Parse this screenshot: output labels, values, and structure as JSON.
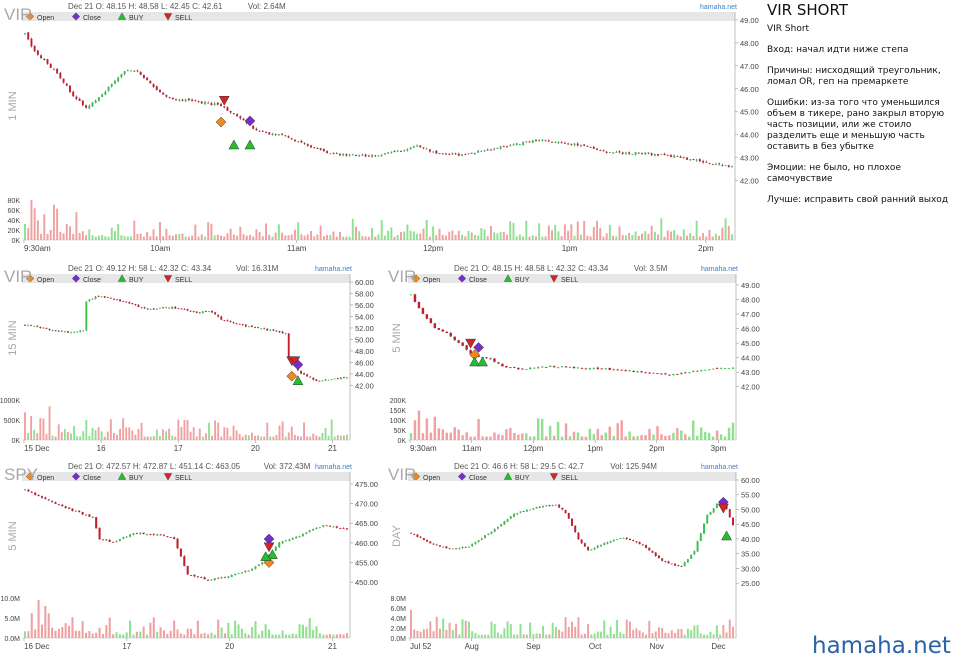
{
  "colors": {
    "up": "#39c24a",
    "down": "#c21f2c",
    "wick": "#333333",
    "vol_up": "#8fe08f",
    "vol_down": "#f0a0a0",
    "open_marker": "#f08a1c",
    "close_marker": "#7a2bd0",
    "buy_marker": "#22c02e",
    "sell_marker": "#d32525",
    "legend_bar": "#e6e6e6",
    "brand": "#2a63a8",
    "watermark": "#a8a8a8"
  },
  "legend": {
    "open": "Open",
    "close": "Close",
    "buy": "BUY",
    "sell": "SELL"
  },
  "icons": {
    "open": "orange-diamond-icon",
    "close": "purple-diamond-icon",
    "buy": "green-up-triangle-icon",
    "sell": "red-down-triangle-icon"
  },
  "notes": {
    "title": "VIR SHORT",
    "subtitle": "VIR Short",
    "entry": "Вход: начал идти ниже степа",
    "reasons": "Причины: нисходящий треугольник, ломал OR, геп на премаркете",
    "mistakes": "Ошибки: из-за того что уменьшился объем в тикере, рано закрыл вторую часть позиции, или же стоило разделить еще и меньшую часть оставить в без убытке",
    "emotions": "Эмоции: не было, но плохое самочувствие",
    "better": "Лучше: исправить свой ранний выход"
  },
  "brand": "hamaha.net",
  "chart_data": [
    {
      "id": "c1",
      "type": "candlestick",
      "symbol": "VIR",
      "interval": "1 MIN",
      "header": "Dec 21 O: 48.15 H: 48.58 L: 42.45 C: 42.61",
      "volume_text": "Vol: 2.64M",
      "source": "hamaha.net",
      "ylim": [
        41.5,
        49
      ],
      "y_ticks": [
        "49.00",
        "48.00",
        "47.00",
        "46.00",
        "45.00",
        "44.00",
        "43.00",
        "42.00"
      ],
      "vol_ticks": [
        "80K",
        "60K",
        "40K",
        "20K",
        "0K"
      ],
      "vol_max": 80,
      "x_labels": [
        "9:30am",
        "10am",
        "11am",
        "12pm",
        "1pm",
        "2pm"
      ],
      "series": [
        [
          0,
          48.4
        ],
        [
          3,
          47.6
        ],
        [
          7,
          47.1
        ],
        [
          11,
          46.5
        ],
        [
          15,
          45.7
        ],
        [
          19,
          45.2
        ],
        [
          23,
          45.6
        ],
        [
          27,
          46.2
        ],
        [
          31,
          46.8
        ],
        [
          35,
          46.8
        ],
        [
          39,
          46.2
        ],
        [
          43,
          45.7
        ],
        [
          47,
          45.5
        ],
        [
          51,
          45.5
        ],
        [
          55,
          45.4
        ],
        [
          60,
          45.3
        ],
        [
          64,
          45.0
        ],
        [
          68,
          44.6
        ],
        [
          72,
          44.2
        ],
        [
          76,
          44.0
        ],
        [
          80,
          44.0
        ],
        [
          85,
          43.7
        ],
        [
          90,
          43.4
        ],
        [
          95,
          43.2
        ],
        [
          100,
          43.1
        ],
        [
          110,
          43.1
        ],
        [
          117,
          43.3
        ],
        [
          122,
          43.5
        ],
        [
          128,
          43.2
        ],
        [
          135,
          43.1
        ],
        [
          142,
          43.3
        ],
        [
          150,
          43.5
        ],
        [
          160,
          43.8
        ],
        [
          168,
          43.6
        ],
        [
          175,
          43.5
        ],
        [
          182,
          43.2
        ],
        [
          190,
          43.2
        ],
        [
          200,
          43.1
        ],
        [
          208,
          42.9
        ],
        [
          215,
          42.7
        ],
        [
          220,
          42.6
        ]
      ],
      "nmax": 220,
      "signals": [
        {
          "type": "open",
          "i": 61,
          "p": 44.55
        },
        {
          "type": "sell",
          "i": 62,
          "p": 45.5
        },
        {
          "type": "buy",
          "i": 65,
          "p": 43.55
        },
        {
          "type": "close",
          "i": 70,
          "p": 44.6
        },
        {
          "type": "buy",
          "i": 70,
          "p": 43.55
        }
      ]
    },
    {
      "id": "c2",
      "type": "candlestick",
      "symbol": "VIR",
      "interval": "15 MIN",
      "header": "Dec 21 O: 49.12 H: 58 L: 42.32 C: 43.34",
      "volume_text": "Vol: 16.31M",
      "source": "hamaha.net",
      "ylim": [
        40.5,
        60
      ],
      "y_ticks": [
        "60.00",
        "58.00",
        "56.00",
        "54.00",
        "52.00",
        "50.00",
        "48.00",
        "46.00",
        "44.00",
        "42.00"
      ],
      "vol_ticks": [
        "1000K",
        "500K",
        "0K"
      ],
      "vol_max": 1000,
      "x_labels": [
        "15 Dec",
        "16",
        "17",
        "20",
        "21"
      ],
      "series": [
        [
          0,
          52.5
        ],
        [
          8,
          51.7
        ],
        [
          15,
          51.2
        ],
        [
          19,
          51.6
        ],
        [
          20,
          56.6
        ],
        [
          24,
          57.6
        ],
        [
          32,
          56.6
        ],
        [
          40,
          55.2
        ],
        [
          48,
          55.6
        ],
        [
          56,
          54.6
        ],
        [
          60,
          55.0
        ],
        [
          64,
          53.5
        ],
        [
          72,
          52.3
        ],
        [
          80,
          51.6
        ],
        [
          85,
          51.0
        ],
        [
          86,
          46.5
        ],
        [
          90,
          44.0
        ],
        [
          95,
          42.8
        ],
        [
          105,
          43.4
        ]
      ],
      "nmax": 105,
      "signals": [
        {
          "type": "sell",
          "i": 87,
          "p": 46.3
        },
        {
          "type": "sell",
          "i": 88,
          "p": 46.3
        },
        {
          "type": "open",
          "i": 87,
          "p": 43.6
        },
        {
          "type": "close",
          "i": 89,
          "p": 45.6
        },
        {
          "type": "buy",
          "i": 89,
          "p": 42.8
        }
      ]
    },
    {
      "id": "c3",
      "type": "candlestick",
      "symbol": "VIR",
      "interval": "5 MIN",
      "header": "Dec 21 O: 48.15 H: 48.58 L: 42.32 C: 43.34",
      "volume_text": "Vol: 3.5M",
      "source": "hamaha.net",
      "ylim": [
        41.5,
        49.2
      ],
      "y_ticks": [
        "49.00",
        "48.00",
        "47.00",
        "46.00",
        "45.00",
        "44.00",
        "43.00",
        "42.00"
      ],
      "vol_ticks": [
        "200K",
        "150K",
        "100K",
        "50K",
        "0K"
      ],
      "vol_max": 200,
      "x_labels": [
        "9:30am",
        "11am",
        "12pm",
        "1pm",
        "2pm",
        "3pm"
      ],
      "series": [
        [
          0,
          48.3
        ],
        [
          3,
          47.0
        ],
        [
          6,
          46.0
        ],
        [
          9,
          45.7
        ],
        [
          12,
          45.0
        ],
        [
          15,
          44.3
        ],
        [
          18,
          44.0
        ],
        [
          20,
          43.9
        ],
        [
          23,
          43.4
        ],
        [
          28,
          43.2
        ],
        [
          35,
          43.4
        ],
        [
          42,
          43.3
        ],
        [
          50,
          43.2
        ],
        [
          58,
          43.0
        ],
        [
          65,
          42.8
        ],
        [
          72,
          43.1
        ],
        [
          78,
          43.3
        ],
        [
          81,
          43.3
        ]
      ],
      "nmax": 81,
      "signals": [
        {
          "type": "sell",
          "i": 15,
          "p": 45.0
        },
        {
          "type": "open",
          "i": 16,
          "p": 44.2
        },
        {
          "type": "close",
          "i": 17,
          "p": 44.7
        },
        {
          "type": "buy",
          "i": 16,
          "p": 43.7
        },
        {
          "type": "buy",
          "i": 18,
          "p": 43.7
        }
      ]
    },
    {
      "id": "c4",
      "type": "candlestick",
      "symbol": "SPY",
      "interval": "5 MIN",
      "header": "Dec 21 O: 472.57 H: 472.87 L: 451.14 C: 463.05",
      "volume_text": "Vol: 372.43M",
      "source": "hamaha.net",
      "ylim": [
        447.5,
        476
      ],
      "y_ticks": [
        "475.00",
        "470.00",
        "465.00",
        "460.00",
        "455.00",
        "450.00"
      ],
      "vol_ticks": [
        "10.0M",
        "5.0M",
        "0.0M"
      ],
      "vol_max": 10,
      "x_labels": [
        "16 Dec",
        "17",
        "20",
        "21"
      ],
      "series": [
        [
          0,
          473.5
        ],
        [
          10,
          469.5
        ],
        [
          20,
          466.5
        ],
        [
          22,
          461.0
        ],
        [
          26,
          460.0
        ],
        [
          32,
          462.5
        ],
        [
          40,
          462.0
        ],
        [
          44,
          461.0
        ],
        [
          48,
          452.0
        ],
        [
          54,
          450.5
        ],
        [
          60,
          451.5
        ],
        [
          66,
          453.0
        ],
        [
          70,
          455.0
        ],
        [
          75,
          460.0
        ],
        [
          80,
          461.5
        ],
        [
          88,
          464.5
        ],
        [
          95,
          463.5
        ]
      ],
      "nmax": 95,
      "signals": [
        {
          "type": "close",
          "i": 72,
          "p": 461.0
        },
        {
          "type": "sell",
          "i": 72,
          "p": 459.0
        },
        {
          "type": "open",
          "i": 72,
          "p": 455.0
        },
        {
          "type": "buy",
          "i": 73,
          "p": 457.0
        },
        {
          "type": "buy",
          "i": 71,
          "p": 456.5
        }
      ]
    },
    {
      "id": "c5",
      "type": "candlestick",
      "symbol": "VIR",
      "interval": "DAY",
      "header": "Dec 21 O: 46.6 H: 58 L: 29.5 C: 42.7",
      "volume_text": "Vol: 125.94M",
      "source": "hamaha.net",
      "ylim": [
        22,
        60
      ],
      "y_ticks": [
        "60.00",
        "55.00",
        "50.00",
        "45.00",
        "40.00",
        "35.00",
        "30.00",
        "25.00"
      ],
      "vol_ticks": [
        "8.0M",
        "6.0M",
        "4.0M",
        "2.0M",
        "0.0M"
      ],
      "vol_max": 9,
      "x_labels": [
        "Jul 52",
        "Aug",
        "Sep",
        "Oct",
        "Nov",
        "Dec"
      ],
      "series": [
        [
          0,
          42.0
        ],
        [
          6,
          38.5
        ],
        [
          12,
          36.5
        ],
        [
          18,
          37.5
        ],
        [
          25,
          42.5
        ],
        [
          32,
          48.5
        ],
        [
          38,
          50.5
        ],
        [
          45,
          51.5
        ],
        [
          48,
          49.0
        ],
        [
          52,
          40.0
        ],
        [
          55,
          36.0
        ],
        [
          60,
          38.5
        ],
        [
          65,
          40.5
        ],
        [
          72,
          38.0
        ],
        [
          78,
          32.5
        ],
        [
          84,
          30.5
        ],
        [
          88,
          36.0
        ],
        [
          92,
          48.0
        ],
        [
          96,
          53.0
        ],
        [
          98,
          50.0
        ],
        [
          100,
          44.5
        ]
      ],
      "nmax": 100,
      "signals": [
        {
          "type": "close",
          "i": 97,
          "p": 52.5
        },
        {
          "type": "sell",
          "i": 97,
          "p": 50.5
        },
        {
          "type": "buy",
          "i": 98,
          "p": 41.0
        }
      ]
    }
  ]
}
